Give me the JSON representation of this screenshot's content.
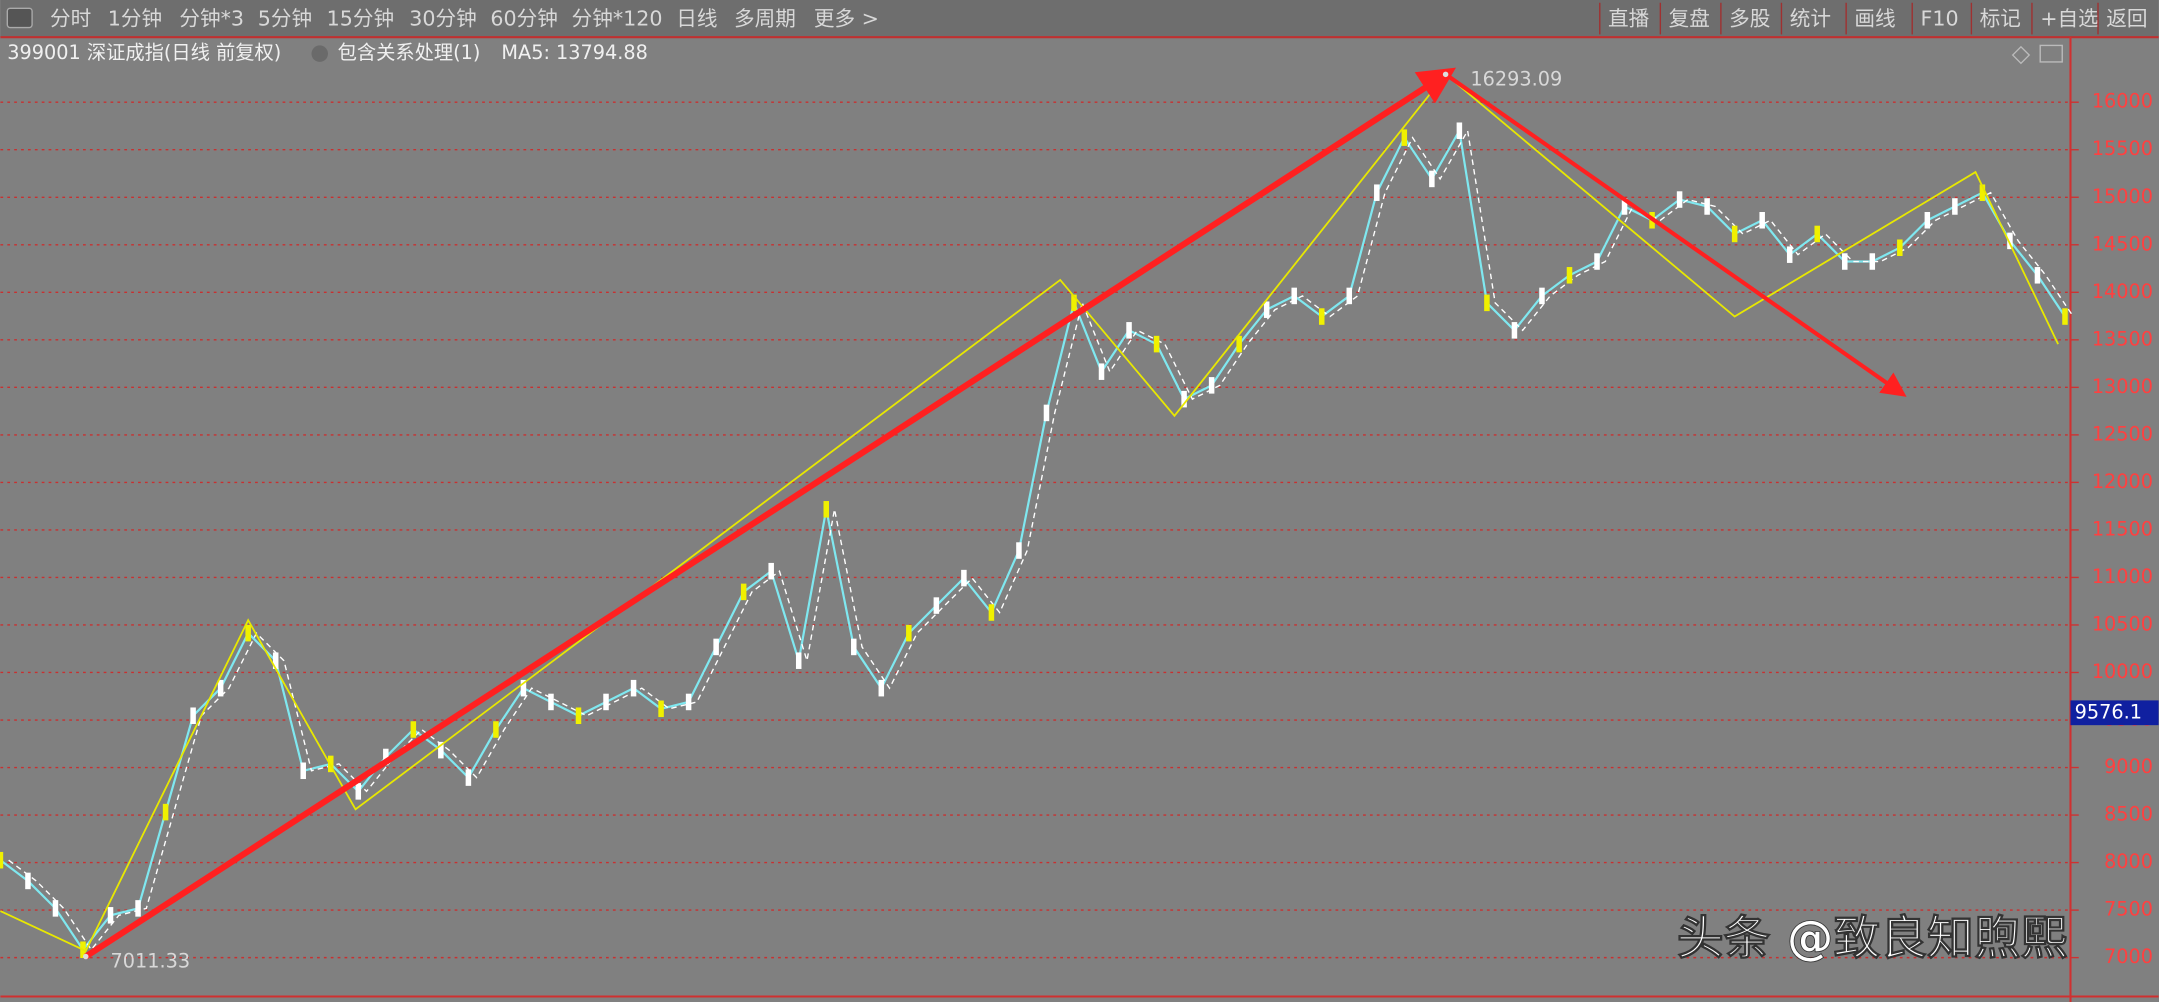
{
  "toolbar": {
    "left": [
      "分时",
      "1分钟",
      "分钟*3",
      "5分钟",
      "15分钟",
      "30分钟",
      "60分钟",
      "分钟*120",
      "日线",
      "多周期",
      "更多 >"
    ],
    "right": [
      "直播",
      "复盘",
      "多股",
      "统计",
      "画线",
      "F10",
      "标记",
      "+自选",
      "返回"
    ],
    "active_left": 8,
    "active_right": 4
  },
  "info": {
    "symbol": "399001 深证成指(日线 前复权)",
    "indicator": "包含关系处理(1)",
    "ma5": "MA5: 13794.88"
  },
  "chart_data": {
    "type": "line",
    "color": "#ffffff",
    "values": [
      8025,
      7807,
      7518,
      7083,
      7445,
      7518,
      8531,
      9545,
      9835,
      10414,
      10124,
      8966,
      9038,
      8749,
      9111,
      9400,
      9183,
      8894,
      9400,
      9835,
      9690,
      9545,
      9690,
      9835,
      9618,
      9690,
      10269,
      10848,
      11066,
      10124,
      11717,
      10269,
      9835,
      10414,
      10704,
      10993,
      10631,
      11283,
      12731,
      13889,
      13165,
      13600,
      13455,
      12876,
      13021,
      13455,
      13817,
      13962,
      13745,
      13962,
      15048,
      15627,
      15193,
      15700,
      13889,
      13600,
      13962,
      14179,
      14324,
      14903,
      14758,
      14976,
      14903,
      14614,
      14758,
      14396,
      14614,
      14324,
      14324,
      14469,
      14758,
      14903,
      15048,
      14541,
      14179,
      13745
    ],
    "zigzag": {
      "color": "#e8e800",
      "x": [
        0,
        3.1,
        9,
        12.9,
        38.5,
        42.65,
        52.5,
        63,
        71.75,
        74.75
      ],
      "values": [
        7490,
        7070,
        10550,
        8560,
        14130,
        12700,
        16293.09,
        13745,
        15265,
        13455
      ]
    },
    "trend_arrows": [
      {
        "color": "#ff2020",
        "x": [
          3.1,
          52.5
        ],
        "y": [
          7011.33,
          16293.09
        ]
      },
      {
        "color": "#ff2020",
        "x": [
          52.5,
          69
        ],
        "y": [
          16293.09,
          12950
        ]
      }
    ],
    "annotations": [
      {
        "x": 52.5,
        "value": 16293.09,
        "label": "16293.09"
      },
      {
        "x": 3.1,
        "value": 7011.33,
        "label": "7011.33"
      }
    ],
    "current_price": {
      "value": 9576.1,
      "label": "9576.1"
    },
    "xlim": [
      0,
      75.5
    ],
    "ylim": [
      6620,
      16670
    ],
    "yticks": [
      7000,
      7500,
      8000,
      8500,
      9000,
      9500,
      10000,
      10500,
      11000,
      11500,
      12000,
      12500,
      13000,
      13500,
      14000,
      14500,
      15000,
      15500,
      16000
    ],
    "grid": true,
    "grid_color": "#c83030"
  },
  "watermark": "头条 @致良知煦熙"
}
